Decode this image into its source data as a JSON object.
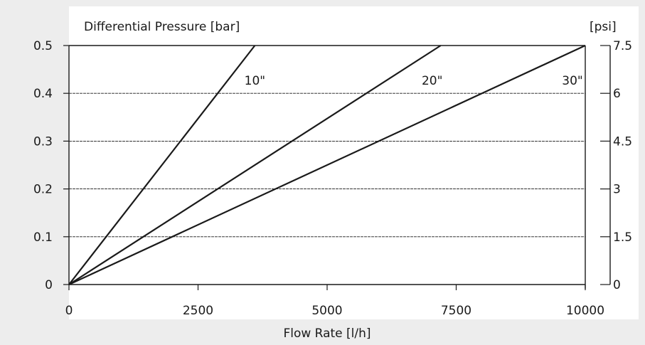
{
  "chart_data": {
    "type": "line",
    "title": "",
    "xlabel": "Flow Rate [l/h]",
    "ylabel": "Differential Pressure [bar]",
    "ylabel_right": "[psi]",
    "xlim": [
      0,
      10000
    ],
    "ylim": [
      0,
      0.5
    ],
    "x_ticks": [
      0,
      2500,
      5000,
      7500,
      10000
    ],
    "x_tick_labels": [
      "0",
      "2500",
      "5000",
      "7500",
      "10000"
    ],
    "y_ticks": [
      0,
      0.1,
      0.2,
      0.3,
      0.4,
      0.5
    ],
    "y_tick_labels": [
      "0",
      "0.1",
      "0.2",
      "0.3",
      "0.4",
      "0.5"
    ],
    "y_right_ticks": [
      0,
      1.5,
      3,
      4.5,
      6,
      7.5
    ],
    "y_right_tick_labels": [
      "0",
      "1.5",
      "3",
      "4.5",
      "6",
      "7.5"
    ],
    "y_right_lim": [
      0,
      7.5
    ],
    "grid": "horizontal dashed",
    "series": [
      {
        "name": "10\"",
        "x": [
          0,
          3600
        ],
        "y": [
          0,
          0.5
        ]
      },
      {
        "name": "20\"",
        "x": [
          0,
          7200
        ],
        "y": [
          0,
          0.5
        ]
      },
      {
        "name": "30\"",
        "x": [
          0,
          10000
        ],
        "y": [
          0,
          0.5
        ]
      }
    ],
    "colors": {
      "line": "#1a1a1a",
      "background": "#ededed",
      "plot": "#ffffff"
    }
  }
}
